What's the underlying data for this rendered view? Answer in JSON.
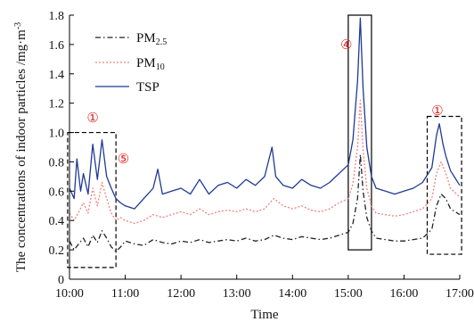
{
  "chart_data": {
    "type": "line",
    "xlabel": "Time",
    "ylabel": "The concentrations of indoor particles /mg·m",
    "ylabel_unit_exponent": "-3",
    "xlim": [
      "10:00",
      "17:00"
    ],
    "ylim": [
      0,
      1.8
    ],
    "x_ticks": [
      "10:00",
      "11:00",
      "12:00",
      "13:00",
      "14:00",
      "15:00",
      "16:00",
      "17:00"
    ],
    "y_ticks": [
      "0",
      "0.2",
      "0.4",
      "0.6",
      "0.8",
      "1.0",
      "1.2",
      "1.4",
      "1.6",
      "1.8"
    ],
    "grid": false,
    "legend_position": "top-left",
    "series": [
      {
        "name": "PM",
        "subscript": "2.5",
        "color": "#222222",
        "style": "dash-dot",
        "points": [
          [
            "10:00",
            0.26
          ],
          [
            "10:05",
            0.2
          ],
          [
            "10:10",
            0.24
          ],
          [
            "10:15",
            0.28
          ],
          [
            "10:20",
            0.22
          ],
          [
            "10:25",
            0.3
          ],
          [
            "10:30",
            0.25
          ],
          [
            "10:35",
            0.33
          ],
          [
            "10:40",
            0.28
          ],
          [
            "10:45",
            0.22
          ],
          [
            "10:50",
            0.19
          ],
          [
            "10:55",
            0.22
          ],
          [
            "11:00",
            0.26
          ],
          [
            "11:10",
            0.24
          ],
          [
            "11:20",
            0.23
          ],
          [
            "11:30",
            0.27
          ],
          [
            "11:40",
            0.25
          ],
          [
            "11:50",
            0.24
          ],
          [
            "12:00",
            0.26
          ],
          [
            "12:10",
            0.25
          ],
          [
            "12:20",
            0.27
          ],
          [
            "12:30",
            0.25
          ],
          [
            "12:40",
            0.26
          ],
          [
            "12:50",
            0.27
          ],
          [
            "13:00",
            0.26
          ],
          [
            "13:10",
            0.28
          ],
          [
            "13:20",
            0.26
          ],
          [
            "13:30",
            0.27
          ],
          [
            "13:40",
            0.3
          ],
          [
            "13:50",
            0.28
          ],
          [
            "14:00",
            0.27
          ],
          [
            "14:10",
            0.29
          ],
          [
            "14:20",
            0.28
          ],
          [
            "14:30",
            0.27
          ],
          [
            "14:40",
            0.28
          ],
          [
            "14:50",
            0.3
          ],
          [
            "15:00",
            0.32
          ],
          [
            "15:05",
            0.38
          ],
          [
            "15:10",
            0.55
          ],
          [
            "15:13",
            0.85
          ],
          [
            "15:16",
            0.6
          ],
          [
            "15:20",
            0.42
          ],
          [
            "15:25",
            0.33
          ],
          [
            "15:30",
            0.28
          ],
          [
            "15:40",
            0.27
          ],
          [
            "15:50",
            0.26
          ],
          [
            "16:00",
            0.26
          ],
          [
            "16:10",
            0.27
          ],
          [
            "16:20",
            0.28
          ],
          [
            "16:30",
            0.34
          ],
          [
            "16:35",
            0.5
          ],
          [
            "16:40",
            0.58
          ],
          [
            "16:45",
            0.55
          ],
          [
            "16:50",
            0.48
          ],
          [
            "17:00",
            0.44
          ]
        ]
      },
      {
        "name": "PM",
        "subscript": "10",
        "color": "#f08080",
        "style": "dotted",
        "points": [
          [
            "10:00",
            0.45
          ],
          [
            "10:05",
            0.4
          ],
          [
            "10:10",
            0.46
          ],
          [
            "10:15",
            0.52
          ],
          [
            "10:20",
            0.45
          ],
          [
            "10:25",
            0.62
          ],
          [
            "10:30",
            0.5
          ],
          [
            "10:35",
            0.66
          ],
          [
            "10:40",
            0.55
          ],
          [
            "10:45",
            0.45
          ],
          [
            "10:50",
            0.4
          ],
          [
            "10:55",
            0.42
          ],
          [
            "11:00",
            0.4
          ],
          [
            "11:10",
            0.38
          ],
          [
            "11:20",
            0.4
          ],
          [
            "11:30",
            0.44
          ],
          [
            "11:40",
            0.42
          ],
          [
            "11:50",
            0.44
          ],
          [
            "12:00",
            0.46
          ],
          [
            "12:10",
            0.44
          ],
          [
            "12:20",
            0.48
          ],
          [
            "12:30",
            0.44
          ],
          [
            "12:40",
            0.46
          ],
          [
            "12:50",
            0.47
          ],
          [
            "13:00",
            0.46
          ],
          [
            "13:10",
            0.48
          ],
          [
            "13:20",
            0.46
          ],
          [
            "13:30",
            0.48
          ],
          [
            "13:40",
            0.55
          ],
          [
            "13:50",
            0.5
          ],
          [
            "14:00",
            0.48
          ],
          [
            "14:10",
            0.5
          ],
          [
            "14:20",
            0.47
          ],
          [
            "14:30",
            0.46
          ],
          [
            "14:40",
            0.48
          ],
          [
            "14:50",
            0.52
          ],
          [
            "15:00",
            0.55
          ],
          [
            "15:05",
            0.65
          ],
          [
            "15:10",
            0.9
          ],
          [
            "15:13",
            1.22
          ],
          [
            "15:16",
            0.88
          ],
          [
            "15:20",
            0.62
          ],
          [
            "15:25",
            0.5
          ],
          [
            "15:30",
            0.45
          ],
          [
            "15:40",
            0.44
          ],
          [
            "15:50",
            0.43
          ],
          [
            "16:00",
            0.44
          ],
          [
            "16:10",
            0.46
          ],
          [
            "16:20",
            0.48
          ],
          [
            "16:30",
            0.55
          ],
          [
            "16:35",
            0.72
          ],
          [
            "16:40",
            0.8
          ],
          [
            "16:45",
            0.72
          ],
          [
            "16:50",
            0.62
          ],
          [
            "17:00",
            0.56
          ]
        ]
      },
      {
        "name": "TSP",
        "color": "#1f3a93",
        "style": "solid",
        "points": [
          [
            "10:00",
            0.62
          ],
          [
            "10:05",
            0.55
          ],
          [
            "10:08",
            0.82
          ],
          [
            "10:12",
            0.6
          ],
          [
            "10:15",
            0.72
          ],
          [
            "10:20",
            0.58
          ],
          [
            "10:25",
            0.92
          ],
          [
            "10:30",
            0.68
          ],
          [
            "10:35",
            0.95
          ],
          [
            "10:40",
            0.7
          ],
          [
            "10:45",
            0.62
          ],
          [
            "10:50",
            0.55
          ],
          [
            "10:55",
            0.52
          ],
          [
            "11:00",
            0.5
          ],
          [
            "11:10",
            0.48
          ],
          [
            "11:20",
            0.55
          ],
          [
            "11:30",
            0.62
          ],
          [
            "11:35",
            0.75
          ],
          [
            "11:40",
            0.58
          ],
          [
            "11:50",
            0.6
          ],
          [
            "12:00",
            0.62
          ],
          [
            "12:10",
            0.58
          ],
          [
            "12:20",
            0.68
          ],
          [
            "12:30",
            0.58
          ],
          [
            "12:40",
            0.64
          ],
          [
            "12:50",
            0.66
          ],
          [
            "13:00",
            0.62
          ],
          [
            "13:10",
            0.68
          ],
          [
            "13:20",
            0.64
          ],
          [
            "13:30",
            0.7
          ],
          [
            "13:38",
            0.9
          ],
          [
            "13:42",
            0.7
          ],
          [
            "13:50",
            0.64
          ],
          [
            "14:00",
            0.62
          ],
          [
            "14:10",
            0.68
          ],
          [
            "14:20",
            0.64
          ],
          [
            "14:30",
            0.62
          ],
          [
            "14:40",
            0.66
          ],
          [
            "14:50",
            0.72
          ],
          [
            "15:00",
            0.78
          ],
          [
            "15:05",
            0.95
          ],
          [
            "15:10",
            1.35
          ],
          [
            "15:13",
            1.78
          ],
          [
            "15:16",
            1.3
          ],
          [
            "15:20",
            0.9
          ],
          [
            "15:25",
            0.7
          ],
          [
            "15:30",
            0.62
          ],
          [
            "15:40",
            0.6
          ],
          [
            "15:50",
            0.58
          ],
          [
            "16:00",
            0.6
          ],
          [
            "16:10",
            0.62
          ],
          [
            "16:20",
            0.66
          ],
          [
            "16:30",
            0.76
          ],
          [
            "16:35",
            0.98
          ],
          [
            "16:38",
            1.06
          ],
          [
            "16:42",
            0.92
          ],
          [
            "16:45",
            0.84
          ],
          [
            "16:50",
            0.74
          ],
          [
            "17:00",
            0.64
          ]
        ]
      }
    ],
    "annotations": [
      {
        "label": "①",
        "x": "10:25",
        "y": 1.07
      },
      {
        "label": "⑤",
        "x": "10:58",
        "y": 0.79
      },
      {
        "label": "④",
        "x": "14:58",
        "y": 1.57
      },
      {
        "label": "①",
        "x": "16:36",
        "y": 1.12
      }
    ],
    "boxes": [
      {
        "style": "dashed",
        "x0": "09:58",
        "x1": "10:50",
        "y0": 0.08,
        "y1": 1.0
      },
      {
        "style": "solid",
        "x0": "15:00",
        "x1": "15:25",
        "y0": 0.2,
        "y1": 1.8
      },
      {
        "style": "dashed",
        "x0": "16:25",
        "x1": "17:02",
        "y0": 0.17,
        "y1": 1.11
      }
    ]
  }
}
